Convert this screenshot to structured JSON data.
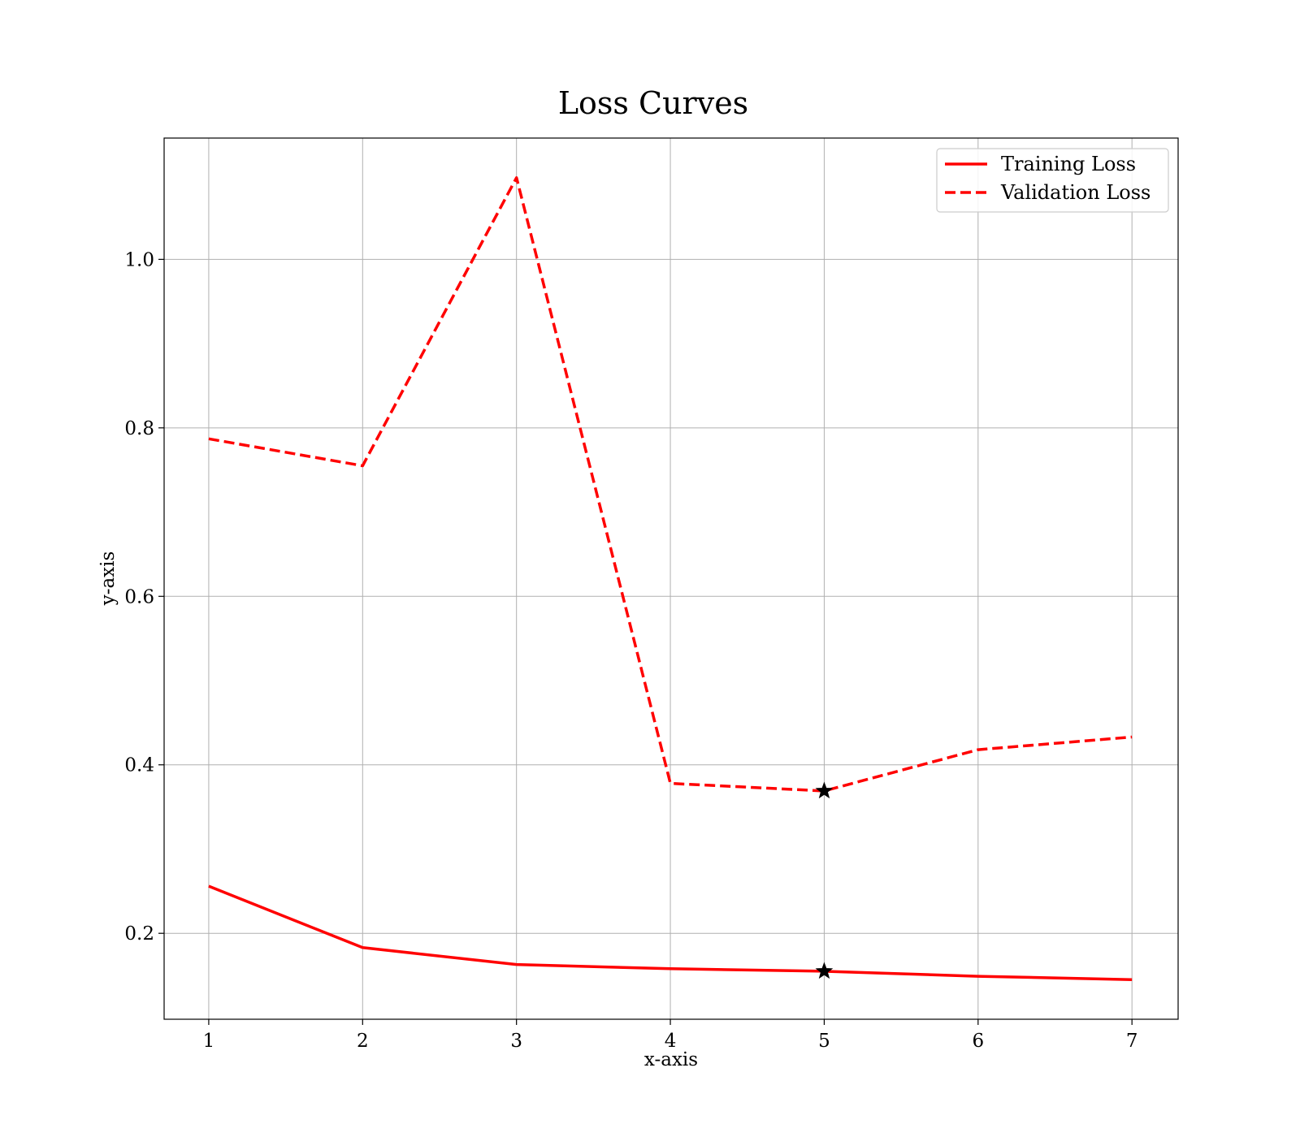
{
  "chart_data": {
    "type": "line",
    "title": "Loss Curves",
    "xlabel": "x-axis",
    "ylabel": "y-axis",
    "x": [
      1,
      2,
      3,
      4,
      5,
      6,
      7
    ],
    "xlim": [
      0.71,
      7.3
    ],
    "ylim": [
      0.098,
      1.144
    ],
    "xticks": [
      1,
      2,
      3,
      4,
      5,
      6,
      7
    ],
    "yticks": [
      0.2,
      0.4,
      0.6,
      0.8,
      1.0
    ],
    "ytick_labels": [
      "0.2",
      "0.4",
      "0.6",
      "0.8",
      "1.0"
    ],
    "grid": true,
    "legend_position": "upper right",
    "series": [
      {
        "name": "Training Loss",
        "values": [
          0.256,
          0.183,
          0.163,
          0.158,
          0.155,
          0.149,
          0.145
        ],
        "color": "#ff0000",
        "linestyle": "solid"
      },
      {
        "name": "Validation Loss",
        "values": [
          0.787,
          0.755,
          1.097,
          0.378,
          0.369,
          0.418,
          0.433
        ],
        "color": "#ff0000",
        "linestyle": "dashed"
      }
    ],
    "markers": [
      {
        "x": 5,
        "y": 0.155,
        "symbol": "star",
        "color": "#000000"
      },
      {
        "x": 5,
        "y": 0.369,
        "symbol": "star",
        "color": "#000000"
      }
    ]
  }
}
